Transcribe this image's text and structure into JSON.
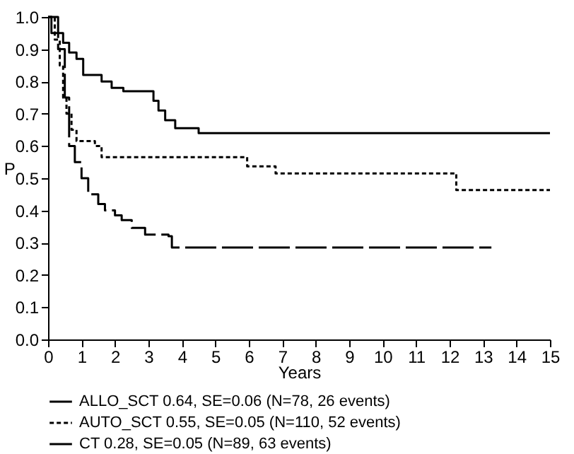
{
  "chart_data": {
    "type": "step",
    "xlabel": "Years",
    "ylabel": "P",
    "xlim": [
      0,
      15
    ],
    "ylim": [
      0,
      1
    ],
    "xticks": [
      0,
      1,
      2,
      3,
      4,
      5,
      6,
      7,
      8,
      9,
      10,
      11,
      12,
      13,
      14,
      15
    ],
    "yticks": [
      {
        "value": 0,
        "label": "0.0"
      },
      0.1,
      0.2,
      0.3,
      0.4,
      0.5,
      0.6,
      0.7,
      0.8,
      0.9,
      {
        "value": 1,
        "label": "1.0"
      }
    ],
    "legend": "bottom",
    "grid": false,
    "marker": "none",
    "series": [
      {
        "name": "ALLO_SCT  0.64, SE=0.06 (N=78, 26 events)",
        "color": "#000000",
        "line_style": "solid",
        "x": [
          0,
          0.3,
          0.45,
          0.63,
          0.85,
          1.05,
          1.6,
          1.9,
          2.25,
          3.15,
          3.3,
          3.5,
          3.8,
          4.5,
          15
        ],
        "values": [
          1.0,
          0.95,
          0.92,
          0.89,
          0.87,
          0.82,
          0.8,
          0.78,
          0.77,
          0.74,
          0.71,
          0.68,
          0.655,
          0.64,
          0.64
        ]
      },
      {
        "name": "AUTO_SCT  0.55, SE=0.05 (N=110, 52 events)",
        "color": "#000000",
        "line_style": "dotted",
        "x": [
          0,
          0.2,
          0.35,
          0.45,
          0.55,
          0.7,
          0.85,
          1.4,
          1.6,
          5.95,
          6.8,
          12.2,
          15
        ],
        "values": [
          1.0,
          0.93,
          0.85,
          0.75,
          0.7,
          0.65,
          0.615,
          0.6,
          0.565,
          0.537,
          0.515,
          0.463,
          0.463
        ]
      },
      {
        "name": "CT                0.28, SE=0.05 (N=89, 63 events)",
        "color": "#000000",
        "line_style": "dashed",
        "x": [
          0,
          0.1,
          0.3,
          0.5,
          0.63,
          0.8,
          1.0,
          1.2,
          1.5,
          1.7,
          2.0,
          2.2,
          2.5,
          2.9,
          3.6,
          3.7,
          13.25
        ],
        "values": [
          1.0,
          0.95,
          0.9,
          0.75,
          0.6,
          0.55,
          0.5,
          0.45,
          0.42,
          0.4,
          0.385,
          0.37,
          0.346,
          0.325,
          0.32,
          0.285,
          0.285
        ]
      }
    ]
  }
}
